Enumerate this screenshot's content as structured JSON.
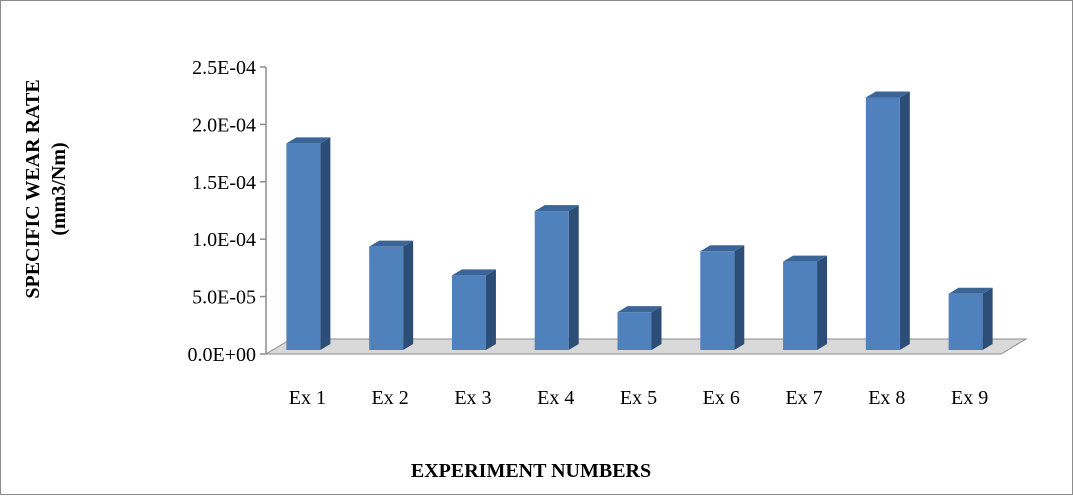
{
  "chart_data": {
    "type": "bar",
    "style": "3d-column",
    "categories": [
      "Ex 1",
      "Ex 2",
      "Ex 3",
      "Ex 4",
      "Ex 5",
      "Ex 6",
      "Ex 7",
      "Ex 8",
      "Ex 9"
    ],
    "series": [
      {
        "values": [
          0.00018,
          9e-05,
          6.5e-05,
          0.000121,
          3.3e-05,
          8.6e-05,
          7.7e-05,
          0.00022,
          4.9e-05
        ]
      }
    ],
    "yticks": [
      "0.0E+00",
      "5.0E-05",
      "1.0E-04",
      "1.5E-04",
      "2.0E-04",
      "2.5E-04"
    ],
    "ylim": [
      0,
      0.00025
    ],
    "xlabel": "EXPERIMENT NUMBERS",
    "ylabel_line1": "SPECIFIC WEAR RATE",
    "ylabel_line2": "(mm3/Nm)",
    "grid": false,
    "legend": "none",
    "colors": {
      "bar_front": "#4f81bd",
      "bar_side": "#2c4d75",
      "bar_top": "#3a6596",
      "floor": "#d9d9d9",
      "axis": "#8c8c8c"
    }
  }
}
